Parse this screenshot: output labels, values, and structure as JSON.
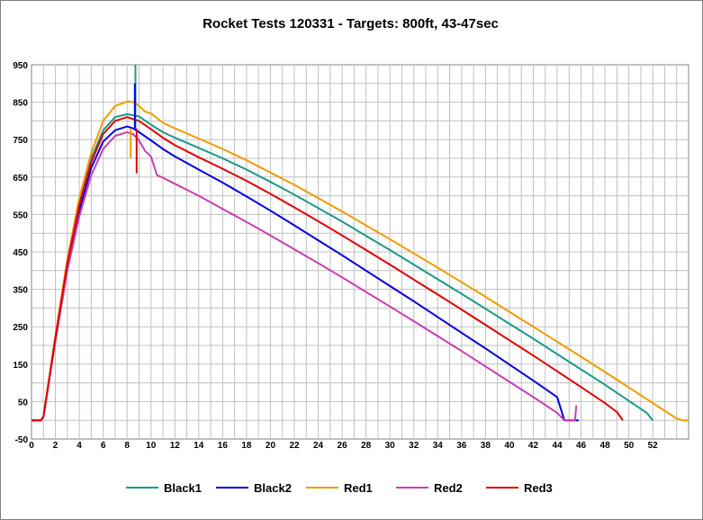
{
  "chart_data": {
    "type": "line",
    "title": "Rocket Tests 120331 - Targets: 800ft, 43-47sec",
    "xlabel": "",
    "ylabel": "",
    "xlim": [
      0,
      55
    ],
    "ylim": [
      -50,
      950
    ],
    "x_ticks": [
      "0",
      "2",
      "4",
      "6",
      "8",
      "10",
      "12",
      "14",
      "16",
      "18",
      "20",
      "22",
      "24",
      "26",
      "28",
      "30",
      "32",
      "34",
      "36",
      "38",
      "40",
      "42",
      "44",
      "46",
      "48",
      "50",
      "52"
    ],
    "y_ticks": [
      "950",
      "850",
      "750",
      "650",
      "550",
      "450",
      "350",
      "250",
      "150",
      "50",
      "-50"
    ],
    "grid": true,
    "legend_position": "bottom",
    "series": [
      {
        "name": "Black1",
        "color": "#1a9a8a",
        "points": [
          [
            0,
            0
          ],
          [
            0.8,
            0
          ],
          [
            1,
            10
          ],
          [
            2,
            220
          ],
          [
            3,
            420
          ],
          [
            4,
            580
          ],
          [
            5,
            700
          ],
          [
            6,
            775
          ],
          [
            7,
            810
          ],
          [
            8,
            818
          ],
          [
            8.5,
            815
          ],
          [
            9,
            812
          ],
          [
            10,
            790
          ],
          [
            11,
            770
          ],
          [
            12,
            755
          ],
          [
            14,
            728
          ],
          [
            16,
            700
          ],
          [
            18,
            670
          ],
          [
            20,
            637
          ],
          [
            22,
            603
          ],
          [
            24,
            567
          ],
          [
            26,
            531
          ],
          [
            28,
            493
          ],
          [
            30,
            455
          ],
          [
            32,
            416
          ],
          [
            34,
            377
          ],
          [
            36,
            338
          ],
          [
            38,
            298
          ],
          [
            40,
            258
          ],
          [
            42,
            218
          ],
          [
            44,
            177
          ],
          [
            46,
            136
          ],
          [
            48,
            95
          ],
          [
            50,
            52
          ],
          [
            51.5,
            20
          ],
          [
            52,
            0
          ]
        ]
      },
      {
        "name": "Black2",
        "color": "#0000e0",
        "points": [
          [
            0,
            0
          ],
          [
            0.8,
            0
          ],
          [
            1,
            10
          ],
          [
            2,
            215
          ],
          [
            3,
            410
          ],
          [
            4,
            560
          ],
          [
            5,
            675
          ],
          [
            6,
            745
          ],
          [
            7,
            775
          ],
          [
            8,
            785
          ],
          [
            8.5,
            780
          ],
          [
            9,
            770
          ],
          [
            10,
            748
          ],
          [
            11,
            725
          ],
          [
            12,
            705
          ],
          [
            14,
            670
          ],
          [
            16,
            635
          ],
          [
            18,
            598
          ],
          [
            20,
            560
          ],
          [
            22,
            521
          ],
          [
            24,
            481
          ],
          [
            26,
            441
          ],
          [
            28,
            400
          ],
          [
            30,
            359
          ],
          [
            32,
            318
          ],
          [
            34,
            276
          ],
          [
            36,
            234
          ],
          [
            38,
            192
          ],
          [
            40,
            149
          ],
          [
            42,
            106
          ],
          [
            44,
            62
          ],
          [
            44.6,
            0
          ],
          [
            45.8,
            0
          ]
        ]
      },
      {
        "name": "Red1",
        "color": "#f29a00",
        "points": [
          [
            0,
            0
          ],
          [
            0.8,
            0
          ],
          [
            1,
            10
          ],
          [
            2,
            225
          ],
          [
            3,
            430
          ],
          [
            4,
            595
          ],
          [
            5,
            715
          ],
          [
            6,
            800
          ],
          [
            7,
            840
          ],
          [
            8,
            852
          ],
          [
            8.6,
            850
          ],
          [
            9,
            840
          ],
          [
            9.5,
            825
          ],
          [
            10,
            820
          ],
          [
            11,
            795
          ],
          [
            12,
            780
          ],
          [
            14,
            753
          ],
          [
            16,
            725
          ],
          [
            18,
            695
          ],
          [
            20,
            662
          ],
          [
            22,
            629
          ],
          [
            24,
            594
          ],
          [
            26,
            558
          ],
          [
            28,
            521
          ],
          [
            30,
            484
          ],
          [
            32,
            446
          ],
          [
            34,
            408
          ],
          [
            36,
            369
          ],
          [
            38,
            330
          ],
          [
            40,
            290
          ],
          [
            42,
            250
          ],
          [
            44,
            210
          ],
          [
            46,
            170
          ],
          [
            48,
            129
          ],
          [
            50,
            88
          ],
          [
            52,
            46
          ],
          [
            54,
            5
          ],
          [
            54.5,
            0
          ],
          [
            55,
            0
          ]
        ]
      },
      {
        "name": "Red2",
        "color": "#c83fb0",
        "points": [
          [
            0,
            0
          ],
          [
            0.8,
            0
          ],
          [
            1,
            10
          ],
          [
            2,
            210
          ],
          [
            3,
            400
          ],
          [
            4,
            545
          ],
          [
            5,
            655
          ],
          [
            6,
            725
          ],
          [
            7,
            760
          ],
          [
            8,
            770
          ],
          [
            8.5,
            765
          ],
          [
            9,
            748
          ],
          [
            9.5,
            720
          ],
          [
            10,
            705
          ],
          [
            10.5,
            655
          ],
          [
            11,
            648
          ],
          [
            12,
            632
          ],
          [
            14,
            600
          ],
          [
            16,
            565
          ],
          [
            18,
            530
          ],
          [
            20,
            494
          ],
          [
            22,
            457
          ],
          [
            24,
            420
          ],
          [
            26,
            382
          ],
          [
            28,
            343
          ],
          [
            30,
            304
          ],
          [
            32,
            265
          ],
          [
            34,
            225
          ],
          [
            36,
            185
          ],
          [
            38,
            144
          ],
          [
            40,
            103
          ],
          [
            42,
            62
          ],
          [
            44,
            20
          ],
          [
            44.6,
            0
          ],
          [
            45.5,
            0
          ],
          [
            45.6,
            40
          ]
        ]
      },
      {
        "name": "Red3",
        "color": "#e00000",
        "points": [
          [
            0,
            0
          ],
          [
            0.8,
            0
          ],
          [
            1,
            10
          ],
          [
            2,
            220
          ],
          [
            3,
            420
          ],
          [
            4,
            575
          ],
          [
            5,
            690
          ],
          [
            6,
            765
          ],
          [
            7,
            800
          ],
          [
            8,
            810
          ],
          [
            8.5,
            805
          ],
          [
            9,
            800
          ],
          [
            10,
            778
          ],
          [
            11,
            755
          ],
          [
            12,
            735
          ],
          [
            14,
            703
          ],
          [
            16,
            672
          ],
          [
            18,
            640
          ],
          [
            20,
            605
          ],
          [
            22,
            569
          ],
          [
            24,
            532
          ],
          [
            26,
            494
          ],
          [
            28,
            455
          ],
          [
            30,
            416
          ],
          [
            32,
            376
          ],
          [
            34,
            336
          ],
          [
            36,
            296
          ],
          [
            38,
            255
          ],
          [
            40,
            214
          ],
          [
            42,
            173
          ],
          [
            44,
            131
          ],
          [
            46,
            89
          ],
          [
            48,
            46
          ],
          [
            49,
            22
          ],
          [
            49.5,
            0
          ]
        ]
      }
    ]
  }
}
